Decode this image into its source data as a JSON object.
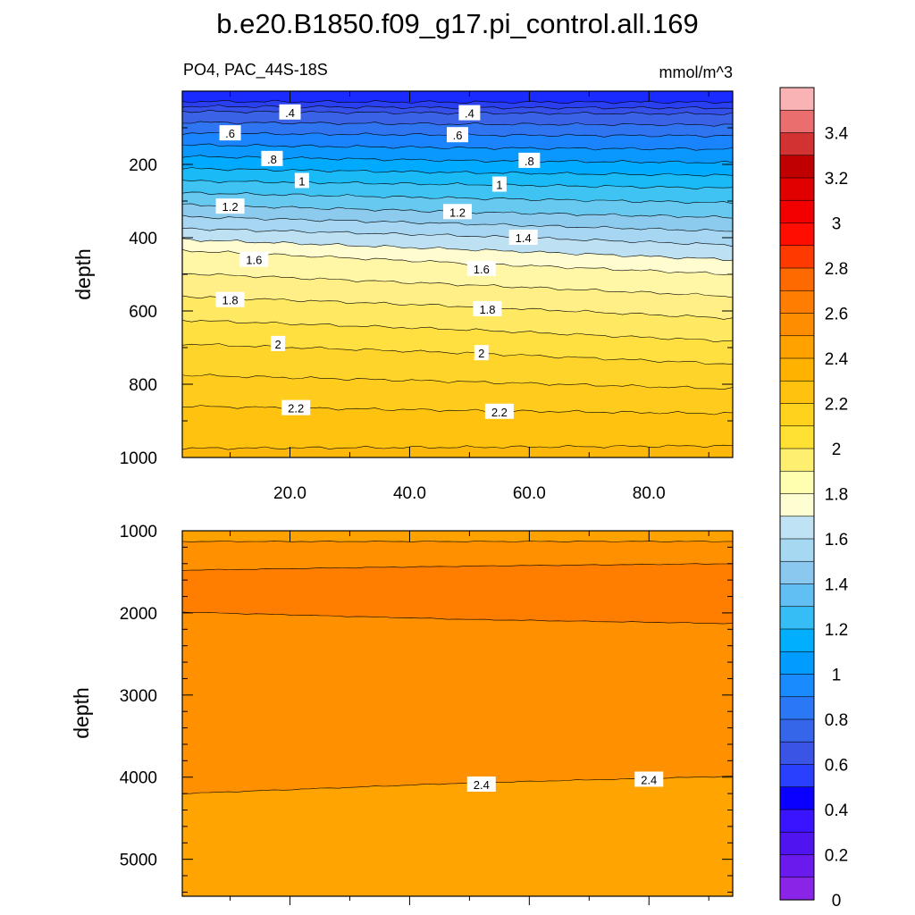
{
  "title": "b.e20.B1850.f09_g17.pi_control.all.169",
  "subtitle_left": "PO4, PAC_44S-18S",
  "units": "mmol/m^3",
  "colorbar": {
    "labels": [
      "3.4",
      "3.2",
      "3",
      "2.8",
      "2.6",
      "2.4",
      "2.2",
      "2",
      "1.8",
      "1.6",
      "1.4",
      "1.2",
      "1",
      "0.8",
      "0.6",
      "0.4",
      "0.2",
      "0"
    ],
    "colors": [
      "#f9b3b5",
      "#ea6e6e",
      "#d33232",
      "#c00000",
      "#e00000",
      "#f20000",
      "#ff0d00",
      "#ff3a00",
      "#ff6a00",
      "#ff7d00",
      "#ff8d00",
      "#ffa200",
      "#ffb300",
      "#ffc20e",
      "#ffd21e",
      "#ffe133",
      "#ffef70",
      "#ffffaf",
      "#fffdd2",
      "#bfe2f4",
      "#a6d8f2",
      "#8ac8ef",
      "#62bff3",
      "#36bdf6",
      "#00b0ff",
      "#009cff",
      "#1a8aff",
      "#2a78f5",
      "#3565e8",
      "#3a55e6",
      "#2a40ff",
      "#0a00ff",
      "#3a14ff",
      "#5014f0",
      "#6a1aec",
      "#8a25e8"
    ]
  },
  "chart_data": [
    {
      "type": "contour",
      "panel": "upper",
      "ylabel": "depth",
      "xlabel": "",
      "xticks": [
        "20.0",
        "40.0",
        "60.0",
        "80.0"
      ],
      "yticks": [
        "200",
        "400",
        "600",
        "800",
        "1000"
      ],
      "xlim": [
        2,
        94
      ],
      "ylim": [
        1000,
        0
      ],
      "contour_levels": [
        0.3,
        0.4,
        0.5,
        0.6,
        0.7,
        0.8,
        0.9,
        1.0,
        1.1,
        1.2,
        1.3,
        1.4,
        1.5,
        1.6,
        1.7,
        1.8,
        1.9,
        2.0,
        2.1,
        2.2,
        2.3
      ],
      "level_depths": {
        "x": [
          2,
          50,
          94
        ],
        "0.4": [
          55,
          60,
          62
        ],
        "0.6": [
          115,
          120,
          122
        ],
        "0.8": [
          178,
          190,
          195
        ],
        "1.0": [
          245,
          255,
          265
        ],
        "1.2": [
          310,
          330,
          345
        ],
        "1.4": [
          375,
          395,
          420
        ],
        "1.6": [
          435,
          470,
          500
        ],
        "1.8": [
          560,
          588,
          620
        ],
        "2.0": [
          690,
          715,
          745
        ],
        "2.2": [
          860,
          872,
          880
        ]
      },
      "contour_labels": [
        {
          "text": ".4",
          "x": 20,
          "depth": 58
        },
        {
          "text": ".4",
          "x": 50,
          "depth": 60
        },
        {
          "text": ".6",
          "x": 10,
          "depth": 115
        },
        {
          "text": ".6",
          "x": 48,
          "depth": 120
        },
        {
          "text": ".8",
          "x": 17,
          "depth": 185
        },
        {
          "text": ".8",
          "x": 60,
          "depth": 190
        },
        {
          "text": "1",
          "x": 22,
          "depth": 245
        },
        {
          "text": "1",
          "x": 55,
          "depth": 255
        },
        {
          "text": "1.2",
          "x": 10,
          "depth": 315
        },
        {
          "text": "1.2",
          "x": 48,
          "depth": 330
        },
        {
          "text": "1.4",
          "x": 59,
          "depth": 400
        },
        {
          "text": "1.6",
          "x": 14,
          "depth": 460
        },
        {
          "text": "1.6",
          "x": 52,
          "depth": 485
        },
        {
          "text": "1.8",
          "x": 10,
          "depth": 570
        },
        {
          "text": "1.8",
          "x": 53,
          "depth": 595
        },
        {
          "text": "2",
          "x": 18,
          "depth": 690
        },
        {
          "text": "2",
          "x": 52,
          "depth": 715
        },
        {
          "text": "2.2",
          "x": 21,
          "depth": 865
        },
        {
          "text": "2.2",
          "x": 55,
          "depth": 875
        }
      ]
    },
    {
      "type": "contour",
      "panel": "lower",
      "ylabel": "depth",
      "xlabel": "",
      "yticks": [
        "1000",
        "2000",
        "3000",
        "4000",
        "5000"
      ],
      "xlim": [
        2,
        94
      ],
      "ylim": [
        5450,
        1000
      ],
      "contour_levels": [
        2.3,
        2.4,
        2.5,
        2.6
      ],
      "level_depths": {
        "x": [
          2,
          50,
          94
        ],
        "a": [
          1130,
          1130,
          1130
        ],
        "b": [
          1480,
          1430,
          1400
        ],
        "c": [
          1990,
          2080,
          2130
        ],
        "d": [
          4200,
          4070,
          3990
        ]
      },
      "contour_labels": [
        {
          "text": "2.4",
          "x": 52,
          "depth": 4090
        },
        {
          "text": "2.4",
          "x": 80,
          "depth": 4030
        }
      ]
    }
  ]
}
